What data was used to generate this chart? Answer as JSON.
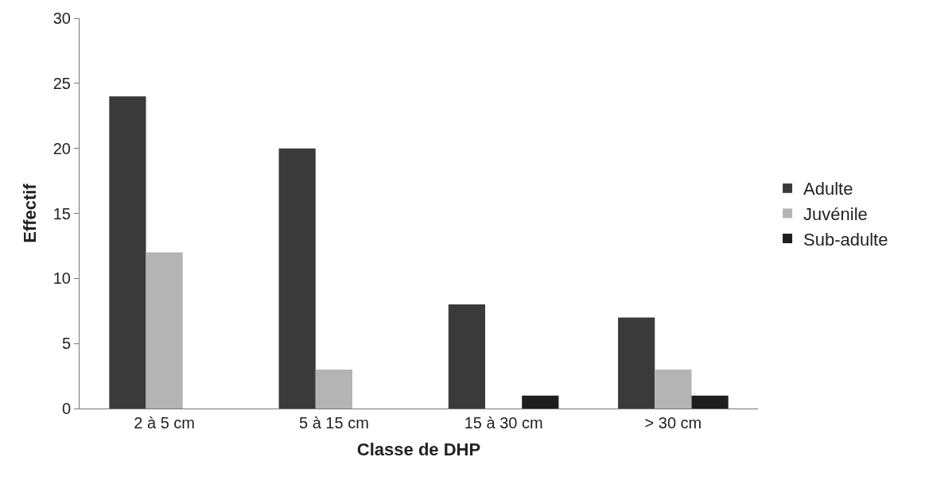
{
  "chart_data": {
    "type": "bar",
    "xlabel": "Classe de DHP",
    "ylabel": "Effectif",
    "categories": [
      "2 à 5 cm",
      "5 à 15 cm",
      "15 à 30 cm",
      "> 30 cm"
    ],
    "series": [
      {
        "name": "Adulte",
        "color": "#3a3a3a",
        "values": [
          24,
          20,
          8,
          7
        ]
      },
      {
        "name": "Juvénile",
        "color": "#b4b4b4",
        "values": [
          12,
          3,
          0,
          3
        ]
      },
      {
        "name": "Sub-adulte",
        "color": "#1e1e1e",
        "values": [
          0,
          0,
          1,
          1
        ]
      }
    ],
    "ylim": [
      0,
      30
    ],
    "yticks": [
      0,
      5,
      10,
      15,
      20,
      25,
      30
    ],
    "legend": "right"
  }
}
